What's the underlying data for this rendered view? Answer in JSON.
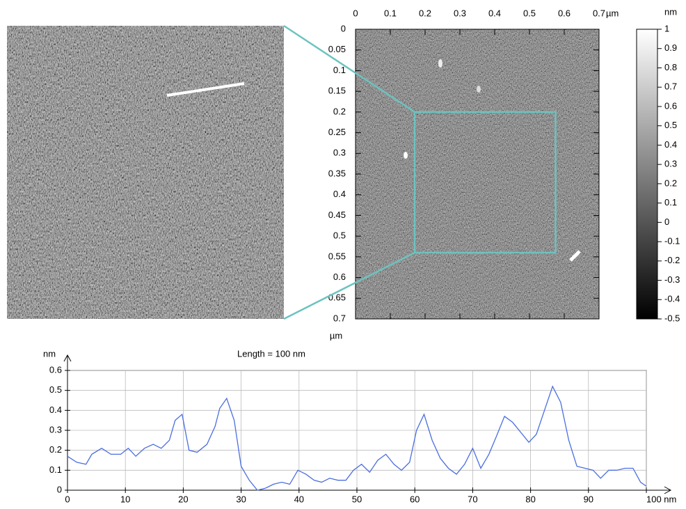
{
  "chart_data": [
    {
      "type": "image",
      "xlabel": "µm",
      "ylabel": "µm",
      "xlim": [
        0,
        0.7
      ],
      "xticks": [
        0,
        0.1,
        0.2,
        0.3,
        0.4,
        0.5,
        0.6,
        0.7
      ],
      "ylim": [
        0,
        0.7
      ],
      "yticks": [
        0,
        0.05,
        0.1,
        0.15,
        0.2,
        0.25,
        0.3,
        0.35,
        0.4,
        0.45,
        0.5,
        0.55,
        0.6,
        0.65,
        0.7
      ],
      "zoom_region": {
        "x": [
          0.17,
          0.575
        ],
        "y": [
          0.2,
          0.54
        ],
        "color": "#6cc3bf"
      },
      "colorbar": {
        "label": "nm",
        "lim": [
          -0.5,
          1
        ],
        "ticks": [
          -0.5,
          -0.4,
          -0.3,
          -0.2,
          -0.1,
          0,
          0.1,
          0.2,
          0.3,
          0.4,
          0.5,
          0.6,
          0.7,
          0.8,
          0.9,
          1
        ]
      }
    },
    {
      "type": "line",
      "title": "Length = 100 nm",
      "ylabel": "nm",
      "color": "#4a6ee0",
      "grid": true,
      "xlim": [
        0,
        100
      ],
      "xticks": [
        0,
        10,
        20,
        30,
        40,
        50,
        60,
        70,
        80,
        90,
        {
          "value": 100,
          "label": "100 nm"
        }
      ],
      "ylim": [
        0,
        0.6
      ],
      "yticks": [
        0,
        0.1,
        0.2,
        0.3,
        0.4,
        0.5,
        0.6
      ],
      "x": [
        0,
        1.6,
        3.2,
        4.2,
        5.9,
        7.5,
        9.2,
        10.5,
        11.8,
        13.3,
        14.8,
        16.2,
        17.6,
        18.6,
        19.8,
        21,
        22.4,
        24.1,
        25.5,
        26.3,
        27.5,
        28.8,
        30,
        31.4,
        32.8,
        34.2,
        35.6,
        37,
        38.4,
        39.8,
        41.2,
        42.6,
        43.9,
        45.3,
        46.7,
        48.1,
        49.4,
        50.8,
        52.2,
        53.6,
        55,
        56.4,
        57.7,
        59.1,
        60.3,
        61.6,
        63,
        64.4,
        65.8,
        67.2,
        68.6,
        70,
        71.4,
        72.8,
        74.1,
        75.5,
        76.9,
        78.3,
        79.7,
        81,
        82.4,
        83.8,
        85.2,
        86.6,
        88,
        89.4,
        90.8,
        92.1,
        93.5,
        94.9,
        96.3,
        97.7,
        99,
        100
      ],
      "values": [
        0.17,
        0.14,
        0.13,
        0.18,
        0.21,
        0.18,
        0.18,
        0.21,
        0.17,
        0.21,
        0.23,
        0.21,
        0.25,
        0.35,
        0.38,
        0.2,
        0.19,
        0.23,
        0.32,
        0.41,
        0.46,
        0.35,
        0.12,
        0.05,
        0,
        0.01,
        0.03,
        0.04,
        0.03,
        0.1,
        0.08,
        0.05,
        0.04,
        0.06,
        0.05,
        0.05,
        0.1,
        0.13,
        0.09,
        0.15,
        0.18,
        0.13,
        0.1,
        0.14,
        0.3,
        0.38,
        0.25,
        0.16,
        0.11,
        0.08,
        0.13,
        0.21,
        0.11,
        0.18,
        0.27,
        0.37,
        0.34,
        0.29,
        0.24,
        0.28,
        0.4,
        0.52,
        0.44,
        0.25,
        0.12,
        0.11,
        0.1,
        0.06,
        0.1,
        0.1,
        0.11,
        0.11,
        0.04,
        0.02
      ]
    }
  ]
}
